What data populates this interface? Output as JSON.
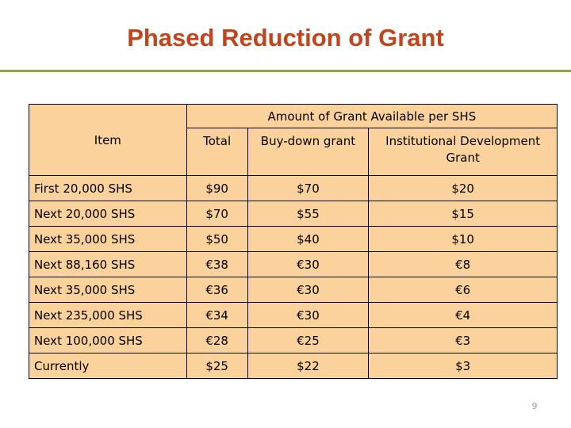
{
  "title": "Phased Reduction of Grant",
  "table": {
    "item_header": "Item",
    "group_header": "Amount of Grant Available per SHS",
    "col_headers": [
      "Total",
      "Buy-down grant",
      "Institutional Development Grant"
    ],
    "rows": [
      [
        "First 20,000 SHS",
        "$90",
        "$70",
        "$20"
      ],
      [
        "Next 20,000 SHS",
        "$70",
        "$55",
        "$15"
      ],
      [
        "Next 35,000 SHS",
        "$50",
        "$40",
        "$10"
      ],
      [
        "Next 88,160 SHS",
        "€38",
        "€30",
        "€8"
      ],
      [
        "Next 35,000 SHS",
        "€36",
        "€30",
        "€6"
      ],
      [
        "Next 235,000 SHS",
        "€34",
        "€30",
        "€4"
      ],
      [
        "Next 100,000 SHS",
        "€28",
        "€25",
        "€3"
      ],
      [
        "Currently",
        "$25",
        "$22",
        "$3"
      ]
    ]
  },
  "page_number": "9",
  "colors": {
    "title": "#c0441c",
    "rule": "#8aa84a",
    "table_fill": "#fbd29b"
  }
}
